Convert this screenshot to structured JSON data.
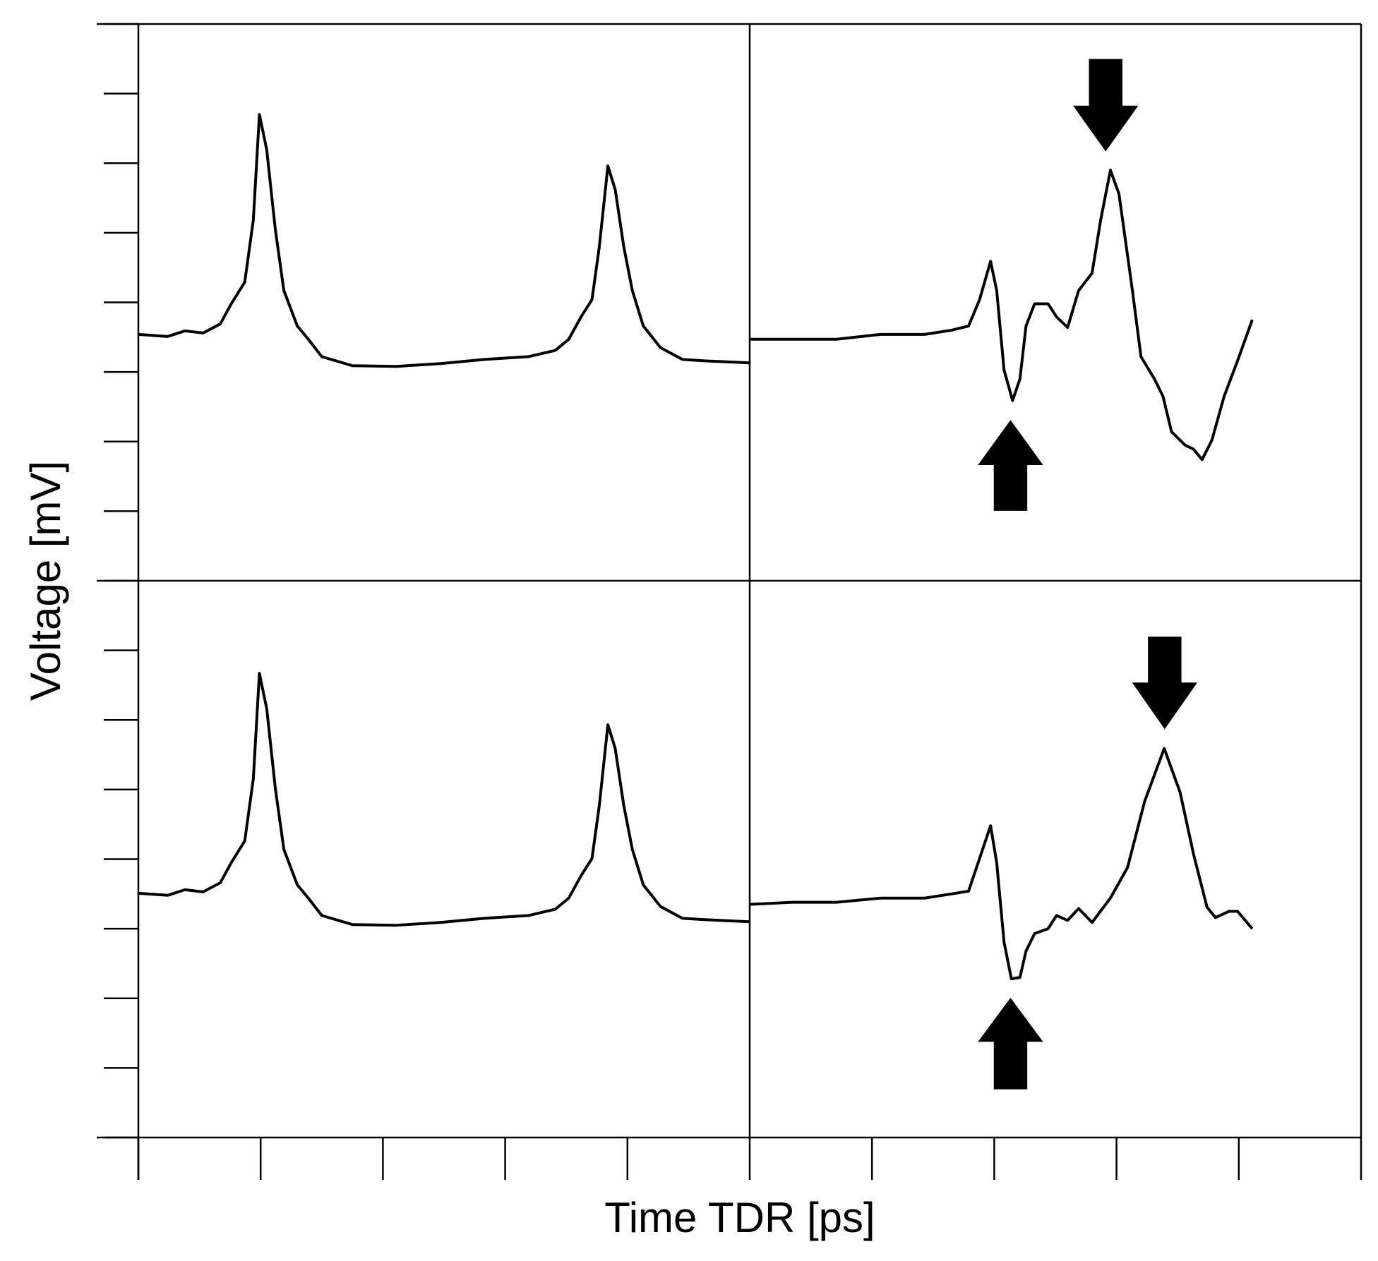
{
  "chart_data": {
    "type": "line",
    "xlabel": "Time TDR [ps]",
    "ylabel": "Voltage [mV]",
    "xlim": [
      0,
      10
    ],
    "ylim": [
      0,
      16
    ],
    "xticks": [
      0,
      1,
      2,
      3,
      4,
      5,
      6,
      7,
      8,
      9,
      10
    ],
    "yticks": [
      0,
      1,
      2,
      3,
      4,
      5,
      6,
      7,
      8,
      9,
      10,
      11,
      12,
      13,
      14,
      15,
      16
    ],
    "series": [
      {
        "color": "#000000",
        "x": [
          0,
          0.24,
          0.38,
          0.53,
          0.67,
          0.76,
          0.87,
          0.94,
          0.99,
          1.05,
          1.12,
          1.19,
          1.3,
          1.39,
          1.5,
          1.75,
          2.11,
          2.47,
          2.83,
          3.19,
          3.41,
          3.52,
          3.62,
          3.71,
          3.77,
          3.84,
          3.9,
          3.97,
          4.04,
          4.13,
          4.27,
          4.45,
          4.63,
          5.0
        ],
        "values": [
          11.54,
          11.51,
          11.59,
          11.56,
          11.69,
          11.98,
          12.29,
          13.18,
          14.7,
          14.19,
          13.05,
          12.17,
          11.66,
          11.47,
          11.22,
          11.09,
          11.08,
          11.12,
          11.18,
          11.22,
          11.31,
          11.47,
          11.79,
          12.04,
          12.8,
          13.96,
          13.62,
          12.8,
          12.17,
          11.66,
          11.35,
          11.18,
          11.16,
          11.13
        ]
      },
      {
        "color": "#000000",
        "x": [
          5.0,
          5.35,
          5.71,
          6.07,
          6.43,
          6.65,
          6.79,
          6.88,
          6.97,
          7.02,
          7.08,
          7.15,
          7.21,
          7.26,
          7.33,
          7.44,
          7.51,
          7.6,
          7.69,
          7.8,
          7.87,
          7.95,
          8.02,
          8.13,
          8.2,
          8.31,
          8.38,
          8.45,
          8.56,
          8.63,
          8.7,
          8.78,
          8.88,
          8.99,
          9.11
        ],
        "values": [
          11.47,
          11.47,
          11.47,
          11.54,
          11.54,
          11.6,
          11.66,
          12.04,
          12.59,
          12.17,
          11.03,
          10.59,
          10.9,
          11.66,
          11.98,
          11.98,
          11.79,
          11.64,
          12.17,
          12.42,
          13.18,
          13.9,
          13.56,
          12.17,
          11.22,
          10.9,
          10.65,
          10.14,
          9.95,
          9.89,
          9.74,
          10.02,
          10.65,
          11.16,
          11.75
        ]
      },
      {
        "color": "#000000",
        "x": [
          0,
          0.24,
          0.38,
          0.53,
          0.67,
          0.76,
          0.87,
          0.94,
          0.99,
          1.05,
          1.12,
          1.19,
          1.3,
          1.39,
          1.5,
          1.75,
          2.11,
          2.47,
          2.83,
          3.19,
          3.41,
          3.52,
          3.62,
          3.71,
          3.77,
          3.84,
          3.9,
          3.97,
          4.04,
          4.13,
          4.27,
          4.45,
          4.63,
          5.0
        ],
        "values": [
          3.51,
          3.48,
          3.56,
          3.53,
          3.66,
          3.95,
          4.26,
          5.15,
          6.67,
          6.16,
          5.02,
          4.14,
          3.63,
          3.44,
          3.19,
          3.06,
          3.05,
          3.09,
          3.15,
          3.19,
          3.28,
          3.44,
          3.76,
          4.01,
          4.77,
          5.93,
          5.59,
          4.77,
          4.14,
          3.63,
          3.32,
          3.15,
          3.13,
          3.1
        ]
      },
      {
        "color": "#000000",
        "x": [
          5.0,
          5.35,
          5.71,
          6.07,
          6.43,
          6.65,
          6.79,
          6.88,
          6.97,
          7.02,
          7.08,
          7.14,
          7.21,
          7.26,
          7.33,
          7.44,
          7.51,
          7.6,
          7.69,
          7.8,
          7.95,
          8.09,
          8.23,
          8.39,
          8.52,
          8.63,
          8.74,
          8.81,
          8.92,
          8.99,
          9.11
        ],
        "values": [
          3.35,
          3.38,
          3.38,
          3.44,
          3.44,
          3.5,
          3.54,
          4.01,
          4.48,
          3.95,
          2.81,
          2.28,
          2.3,
          2.68,
          2.93,
          3.0,
          3.19,
          3.12,
          3.29,
          3.09,
          3.44,
          3.88,
          4.83,
          5.59,
          4.96,
          4.07,
          3.31,
          3.16,
          3.25,
          3.25,
          3.0
        ]
      }
    ]
  }
}
